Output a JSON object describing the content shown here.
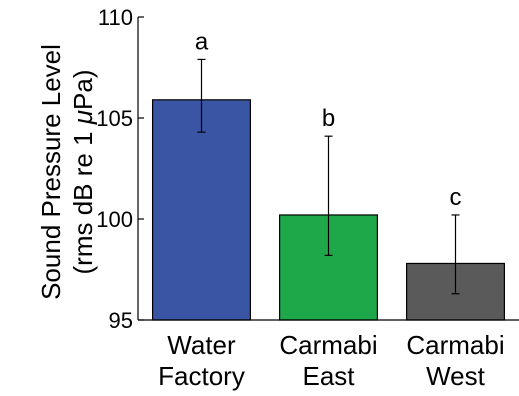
{
  "chart_data": {
    "type": "bar",
    "title": "",
    "xlabel": "",
    "ylabel_line1": "Sound Pressure Level",
    "ylabel_line2_prefix": "(rms dB re 1 ",
    "ylabel_line2_mu": "μ",
    "ylabel_line2_suffix": "Pa)",
    "ylim": [
      95,
      110
    ],
    "yticks": [
      95,
      100,
      105,
      110
    ],
    "categories": [
      [
        "Water",
        "Factory"
      ],
      [
        "Carmabi",
        "East"
      ],
      [
        "Carmabi",
        "West"
      ]
    ],
    "values": [
      105.9,
      100.2,
      97.8
    ],
    "error_upper": [
      107.9,
      104.1,
      100.2
    ],
    "error_lower": [
      104.3,
      98.2,
      96.3
    ],
    "significance_labels": [
      "a",
      "b",
      "c"
    ],
    "colors": [
      "#3a55a4",
      "#1fa84a",
      "#5a5a5a"
    ],
    "grid": false
  }
}
